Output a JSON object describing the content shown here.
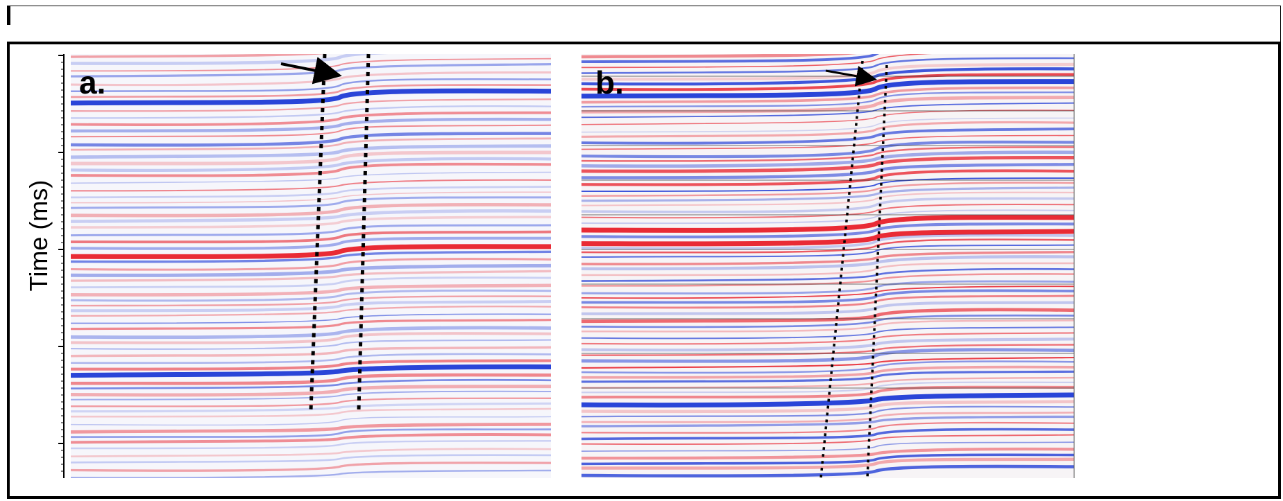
{
  "figure": {
    "y_axis_label": "Time (ms)",
    "panels": [
      {
        "label": "a."
      },
      {
        "label": "b."
      }
    ],
    "colors": {
      "positive": "#e8202a",
      "negative": "#1f3bd6",
      "background": "#ffffff",
      "annotation": "#000000"
    }
  }
}
